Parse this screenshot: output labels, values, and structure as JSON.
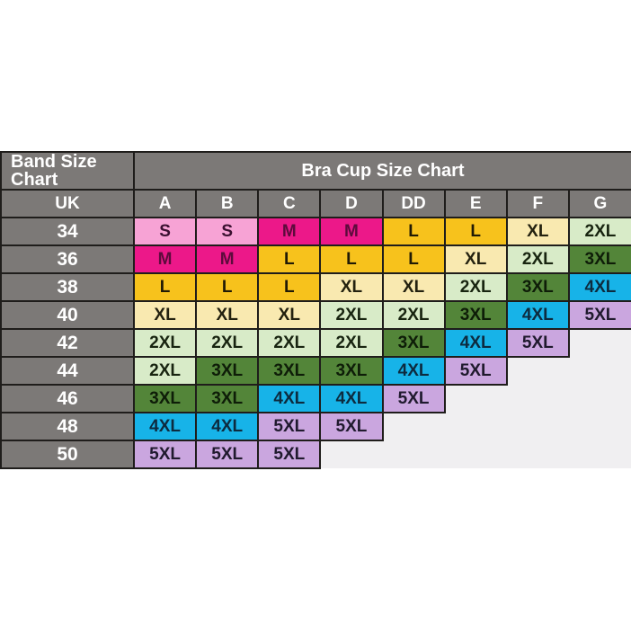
{
  "theme": {
    "page_bg": "#ffffff",
    "header_bg": "#7c7977",
    "header_fg": "#ffffff",
    "border": "#1f1d1b",
    "empty_bg": "#f0eff1"
  },
  "chart_data": {
    "type": "table",
    "title_left": "Band Size Chart",
    "title_right": "Bra Cup Size Chart",
    "row_header": "UK",
    "columns": [
      "A",
      "B",
      "C",
      "D",
      "DD",
      "E",
      "F",
      "G"
    ],
    "rows": [
      {
        "band": "34",
        "cells": [
          "S",
          "S",
          "M",
          "M",
          "L",
          "L",
          "XL",
          "2XL"
        ]
      },
      {
        "band": "36",
        "cells": [
          "M",
          "M",
          "L",
          "L",
          "L",
          "XL",
          "2XL",
          "3XL"
        ]
      },
      {
        "band": "38",
        "cells": [
          "L",
          "L",
          "L",
          "XL",
          "XL",
          "2XL",
          "3XL",
          "4XL"
        ]
      },
      {
        "band": "40",
        "cells": [
          "XL",
          "XL",
          "XL",
          "2XL",
          "2XL",
          "3XL",
          "4XL",
          "5XL"
        ]
      },
      {
        "band": "42",
        "cells": [
          "2XL",
          "2XL",
          "2XL",
          "2XL",
          "3XL",
          "4XL",
          "5XL",
          ""
        ]
      },
      {
        "band": "44",
        "cells": [
          "2XL",
          "3XL",
          "3XL",
          "3XL",
          "4XL",
          "5XL",
          "",
          ""
        ]
      },
      {
        "band": "46",
        "cells": [
          "3XL",
          "3XL",
          "4XL",
          "4XL",
          "5XL",
          "",
          "",
          ""
        ]
      },
      {
        "band": "48",
        "cells": [
          "4XL",
          "4XL",
          "5XL",
          "5XL",
          "",
          "",
          "",
          ""
        ]
      },
      {
        "band": "50",
        "cells": [
          "5XL",
          "5XL",
          "5XL",
          "",
          "",
          "",
          "",
          ""
        ]
      }
    ],
    "size_colors": {
      "S": {
        "bg": "#f7a3d5",
        "fg": "#3a1030"
      },
      "M": {
        "bg": "#ec1889",
        "fg": "#5c0b3c"
      },
      "L": {
        "bg": "#f7c21c",
        "fg": "#201a05"
      },
      "XL": {
        "bg": "#f9e9b0",
        "fg": "#23210f"
      },
      "2XL": {
        "bg": "#d8ebc8",
        "fg": "#182410"
      },
      "3XL": {
        "bg": "#538539",
        "fg": "#0e1d08"
      },
      "4XL": {
        "bg": "#17b3e8",
        "fg": "#0d2b3f"
      },
      "5XL": {
        "bg": "#caa6df",
        "fg": "#201a2e"
      }
    }
  }
}
